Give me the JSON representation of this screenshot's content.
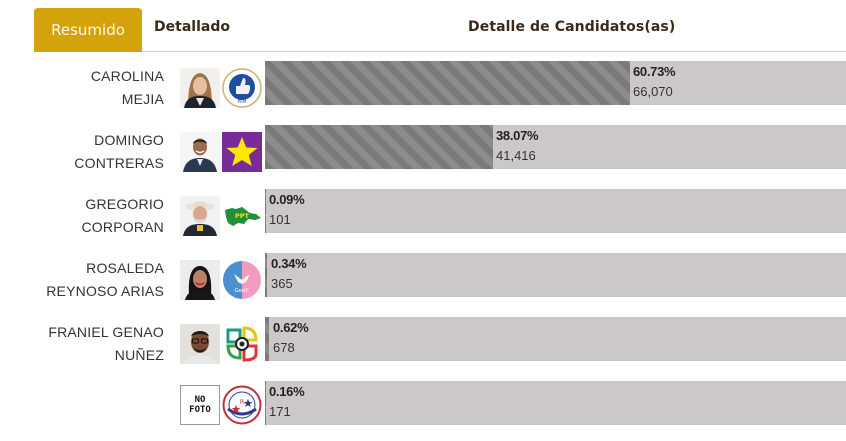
{
  "tabs": [
    {
      "label": "Resumido",
      "active": true
    },
    {
      "label": "Detallado",
      "active": false
    }
  ],
  "header": {
    "title": "Detalle de Candidatos(as)"
  },
  "colors": {
    "accent": "#d4a20a",
    "bar_track": "#cdc8c8",
    "bar_fill": "#808080"
  },
  "candidates": [
    {
      "name_line1": "CAROLINA",
      "name_line2": "MEJIA",
      "party_logo": "prm-thumbs-up-logo",
      "percent": "60.73%",
      "percent_value": 60.73,
      "votes": "66,070"
    },
    {
      "name_line1": "DOMINGO",
      "name_line2": "CONTRERAS",
      "party_logo": "pld-yellow-star-logo",
      "percent": "38.07%",
      "percent_value": 38.07,
      "votes": "41,416"
    },
    {
      "name_line1": "GREGORIO",
      "name_line2": "CORPORAN",
      "party_logo": "ppt-map-logo",
      "percent": "0.09%",
      "percent_value": 0.09,
      "votes": "101"
    },
    {
      "name_line1": "ROSALEDA",
      "name_line2": "REYNOSO ARIAS",
      "party_logo": "genc-eagle-logo",
      "percent": "0.34%",
      "percent_value": 0.34,
      "votes": "365"
    },
    {
      "name_line1": "FRANIEL GENAO",
      "name_line2": "NUÑEZ",
      "party_logo": "colorful-flower-logo",
      "percent": "0.62%",
      "percent_value": 0.62,
      "votes": "678"
    },
    {
      "name_line1": "",
      "name_line2": "",
      "photo_placeholder": "NO FOTO",
      "party_logo": "brc-stars-logo",
      "percent": "0.16%",
      "percent_value": 0.16,
      "votes": "171"
    }
  ]
}
